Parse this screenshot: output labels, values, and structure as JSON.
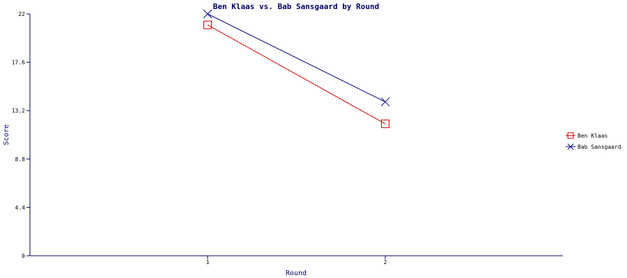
{
  "chart_data": {
    "type": "line",
    "title": "Ben Klaas vs. Bab Sansgaard by Round",
    "xlabel": "Round",
    "ylabel": "Score",
    "categories": [
      "1",
      "2"
    ],
    "ylim": [
      0,
      22
    ],
    "yticks": [
      "0",
      "4.4",
      "8.8",
      "13.2",
      "17.6",
      "22"
    ],
    "grid": false,
    "legend_position": "right",
    "series": [
      {
        "name": "Ben Klaas",
        "values": [
          21,
          12
        ],
        "color": "#cc0000",
        "marker": "square"
      },
      {
        "name": "Bab Sansgaard",
        "values": [
          22,
          14
        ],
        "color": "#000080",
        "marker": "x"
      }
    ]
  },
  "colors": {
    "axis": "#000066",
    "text": "#000000"
  }
}
